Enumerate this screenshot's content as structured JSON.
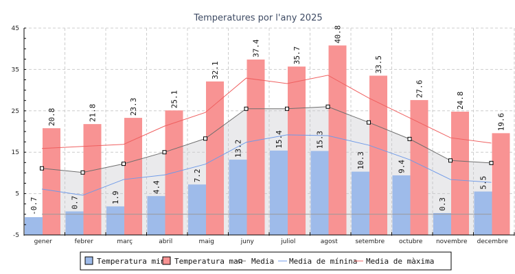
{
  "chart_data": {
    "type": "bar",
    "title": "Temperatures por l'any 2025",
    "xlabel": "",
    "ylabel": "",
    "ylim": [
      -5,
      45
    ],
    "yticks": [
      -5,
      5,
      15,
      25,
      35,
      45
    ],
    "grid": true,
    "legend_position": "bottom",
    "categories": [
      "gener",
      "febrer",
      "març",
      "abril",
      "maig",
      "juny",
      "juliol",
      "agost",
      "setembre",
      "octubre",
      "novembre",
      "decembre"
    ],
    "series": [
      {
        "name": "Temperatura min",
        "kind": "bar",
        "color": "#9ebbea",
        "values": [
          -0.7,
          0.7,
          1.9,
          4.4,
          7.2,
          13.2,
          15.4,
          15.3,
          10.3,
          9.4,
          0.3,
          5.5
        ],
        "labels": [
          "-0.7",
          "0.7",
          "1.9",
          "4.4",
          "7.2",
          "13.2",
          "15.4",
          "15.3",
          "10.3",
          "9.4",
          "0.3",
          "5.5"
        ]
      },
      {
        "name": "Temperatura max",
        "kind": "bar",
        "color": "#f89393",
        "values": [
          20.8,
          21.8,
          23.3,
          25.1,
          32.1,
          37.4,
          35.7,
          40.8,
          33.5,
          27.6,
          24.8,
          19.6
        ],
        "labels": [
          "20.8",
          "21.8",
          "23.3",
          "25.1",
          "32.1",
          "37.4",
          "35.7",
          "40.8",
          "33.5",
          "27.6",
          "24.8",
          "19.6"
        ]
      },
      {
        "name": "Media",
        "kind": "line-marker-area",
        "color": "#6e6e6e",
        "values": [
          11.1,
          10.1,
          12.2,
          15.0,
          18.3,
          25.5,
          25.5,
          26.0,
          22.2,
          18.2,
          13.0,
          12.4
        ]
      },
      {
        "name": "Media de mínina",
        "kind": "line",
        "color": "#6f9ae8",
        "values": [
          6.1,
          4.6,
          8.4,
          9.5,
          12.1,
          17.4,
          19.2,
          19.0,
          16.7,
          13.2,
          8.4,
          7.7
        ]
      },
      {
        "name": "Media de màxima",
        "kind": "line",
        "color": "#ef5f5f",
        "values": [
          15.9,
          16.4,
          16.9,
          21.3,
          24.6,
          32.9,
          31.6,
          33.6,
          28.1,
          23.3,
          18.5,
          17.2
        ]
      }
    ],
    "reference_line": {
      "value": 0,
      "color": "#999999"
    },
    "legend": [
      "Temperatura min",
      "Temperatura max",
      "Media",
      "Media de mínina",
      "Media de màxima"
    ]
  }
}
